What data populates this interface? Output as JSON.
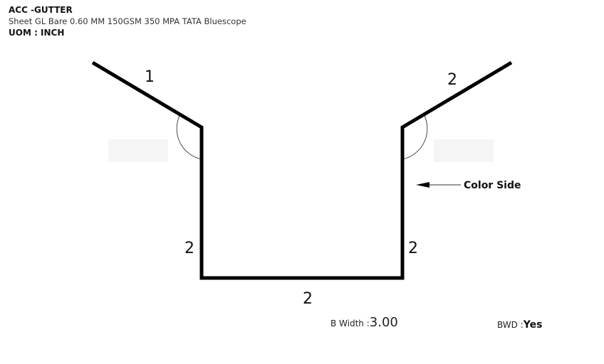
{
  "header": {
    "title": "ACC -GUTTER",
    "subtitle": "Sheet GL Bare 0.60 MM 150GSM 350 MPA TATA Bluescope",
    "uom": "UOM : INCH"
  },
  "diagram": {
    "segment_labels": {
      "left_flange": "1",
      "right_flange": "2",
      "left_wall": "2",
      "right_wall": "2",
      "bottom": "2"
    },
    "color_side_label": "Color Side",
    "line_color": "#000000",
    "placeholder_color": "#f7f7f7"
  },
  "footer": {
    "b_width_label": "B Width :",
    "b_width_value": "3.00",
    "bwd_label": "BWD :",
    "bwd_value": "Yes"
  }
}
